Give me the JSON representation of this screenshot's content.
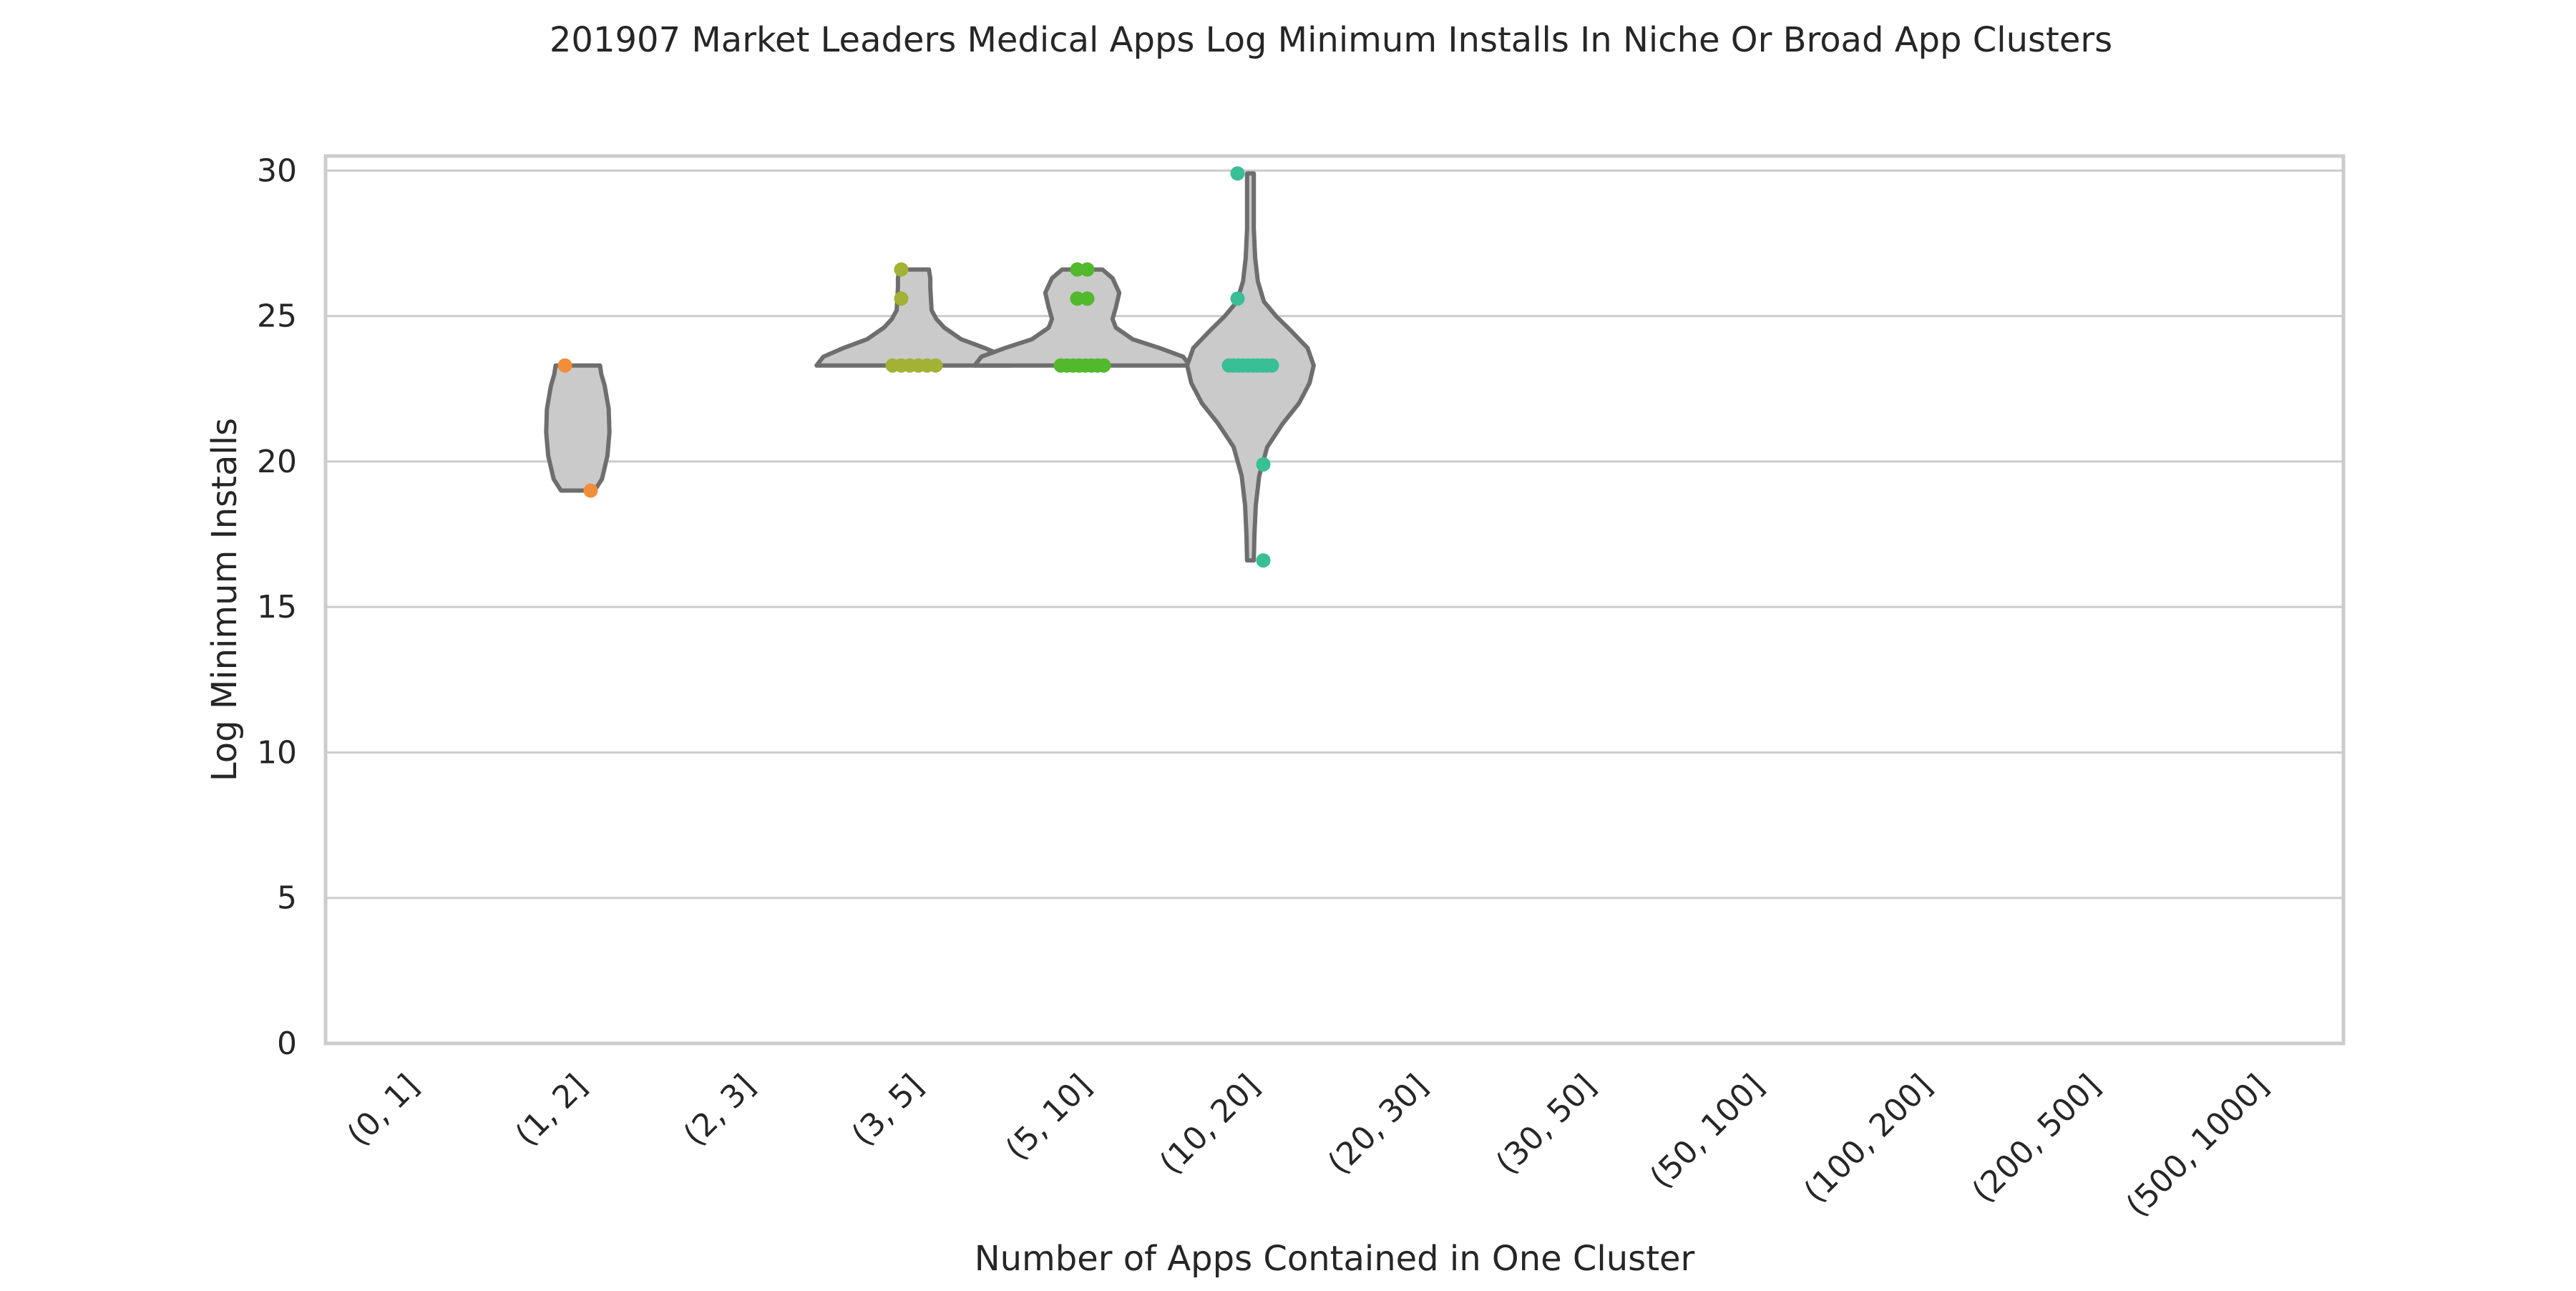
{
  "chart_data": {
    "type": "violin",
    "title": "201907 Market Leaders Medical Apps Log Minimum Installs In Niche Or Broad App Clusters",
    "xlabel": "Number of Apps Contained in One Cluster",
    "ylabel": "Log Minimum Installs",
    "categories": [
      "(0, 1]",
      "(1, 2]",
      "(2, 3]",
      "(3, 5]",
      "(5, 10]",
      "(10, 20]",
      "(20, 30]",
      "(30, 50]",
      "(50, 100]",
      "(100, 200]",
      "(200, 500]",
      "(500, 1000]"
    ],
    "ylim": [
      0,
      30.5
    ],
    "yticks": [
      0,
      5,
      10,
      15,
      20,
      25,
      30
    ],
    "grid": "horizontal",
    "series": [
      {
        "category": "(1, 2]",
        "color": "#f28e3a",
        "points": [
          23.3,
          19.0
        ],
        "violin": {
          "range": [
            19.0,
            23.3
          ],
          "profile": [
            [
              19.0,
              0.25
            ],
            [
              19.4,
              0.36
            ],
            [
              20.2,
              0.44
            ],
            [
              21.0,
              0.47
            ],
            [
              21.8,
              0.46
            ],
            [
              22.6,
              0.4
            ],
            [
              23.0,
              0.35
            ],
            [
              23.3,
              0.33
            ]
          ]
        }
      },
      {
        "category": "(3, 5]",
        "color": "#a3b135",
        "points": [
          23.3,
          23.3,
          23.3,
          23.3,
          23.3,
          23.3,
          25.6,
          26.6
        ],
        "violin": {
          "range": [
            23.3,
            26.6
          ],
          "profile": [
            [
              23.3,
              1.45
            ],
            [
              23.6,
              1.35
            ],
            [
              23.9,
              1.05
            ],
            [
              24.2,
              0.7
            ],
            [
              24.6,
              0.45
            ],
            [
              24.9,
              0.33
            ],
            [
              25.2,
              0.26
            ],
            [
              25.6,
              0.25
            ],
            [
              26.0,
              0.24
            ],
            [
              26.3,
              0.24
            ],
            [
              26.6,
              0.22
            ]
          ]
        }
      },
      {
        "category": "(5, 10]",
        "color": "#52b82c",
        "points": [
          23.3,
          23.3,
          23.3,
          23.3,
          23.3,
          23.3,
          23.3,
          23.3,
          25.6,
          25.6,
          26.6,
          26.6
        ],
        "violin": {
          "range": [
            23.3,
            26.6
          ],
          "profile": [
            [
              23.3,
              1.6
            ],
            [
              23.6,
              1.5
            ],
            [
              23.9,
              1.15
            ],
            [
              24.2,
              0.75
            ],
            [
              24.6,
              0.5
            ],
            [
              24.9,
              0.45
            ],
            [
              25.3,
              0.5
            ],
            [
              25.8,
              0.55
            ],
            [
              26.3,
              0.45
            ],
            [
              26.6,
              0.3
            ]
          ]
        }
      },
      {
        "category": "(10, 20]",
        "color": "#39bf95",
        "points": [
          29.9,
          25.6,
          23.3,
          23.3,
          23.3,
          23.3,
          23.3,
          23.3,
          23.3,
          23.3,
          23.3,
          23.3,
          19.9,
          16.6
        ],
        "violin": {
          "range": [
            16.6,
            29.9
          ],
          "profile": [
            [
              16.6,
              0.05
            ],
            [
              17.5,
              0.06
            ],
            [
              18.5,
              0.08
            ],
            [
              19.5,
              0.13
            ],
            [
              20.5,
              0.25
            ],
            [
              21.3,
              0.48
            ],
            [
              22.0,
              0.72
            ],
            [
              22.7,
              0.88
            ],
            [
              23.3,
              0.94
            ],
            [
              23.9,
              0.85
            ],
            [
              24.5,
              0.6
            ],
            [
              25.0,
              0.38
            ],
            [
              25.5,
              0.2
            ],
            [
              26.2,
              0.11
            ],
            [
              27.0,
              0.07
            ],
            [
              28.0,
              0.05
            ],
            [
              29.0,
              0.05
            ],
            [
              29.9,
              0.05
            ]
          ]
        }
      }
    ]
  }
}
